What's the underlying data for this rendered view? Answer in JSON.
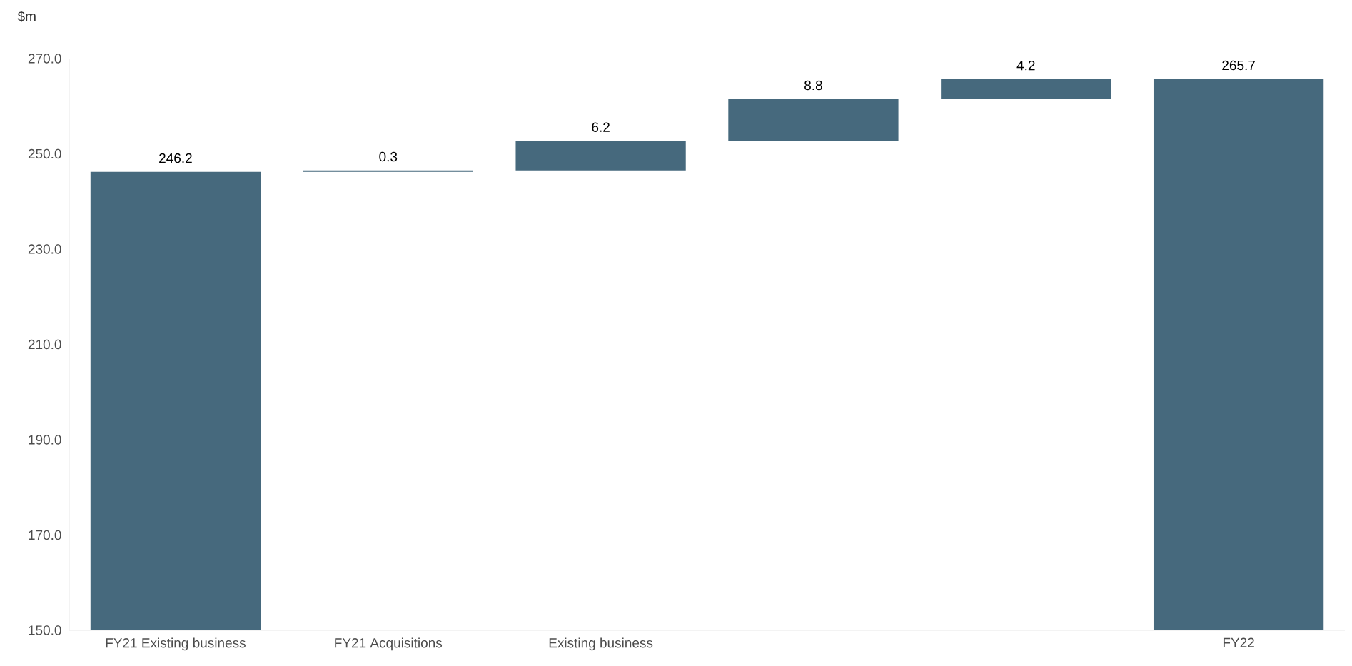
{
  "chart_data": {
    "type": "bar",
    "ylabel": "$m",
    "categories": [
      "FY21 Existing business",
      "FY21 Acquisitions",
      "Existing business",
      null,
      null,
      "FY22"
    ],
    "values": [
      246.2,
      0.3,
      6.2,
      8.8,
      4.2,
      265.7
    ],
    "base": [
      null,
      246.2,
      246.5,
      252.7,
      261.5,
      null
    ],
    "color": "#46697d",
    "ylim": [
      150,
      270
    ],
    "yticks": [
      {
        "value": 150,
        "label": "150.0"
      },
      {
        "value": 170,
        "label": "170.0"
      },
      {
        "value": 190,
        "label": "190.0"
      },
      {
        "value": 210,
        "label": "210.0"
      },
      {
        "value": 230,
        "label": "230.0"
      },
      {
        "value": 250,
        "label": "250.0"
      },
      {
        "value": 270,
        "label": "270.0"
      }
    ],
    "data_labels": true,
    "grid": false
  }
}
